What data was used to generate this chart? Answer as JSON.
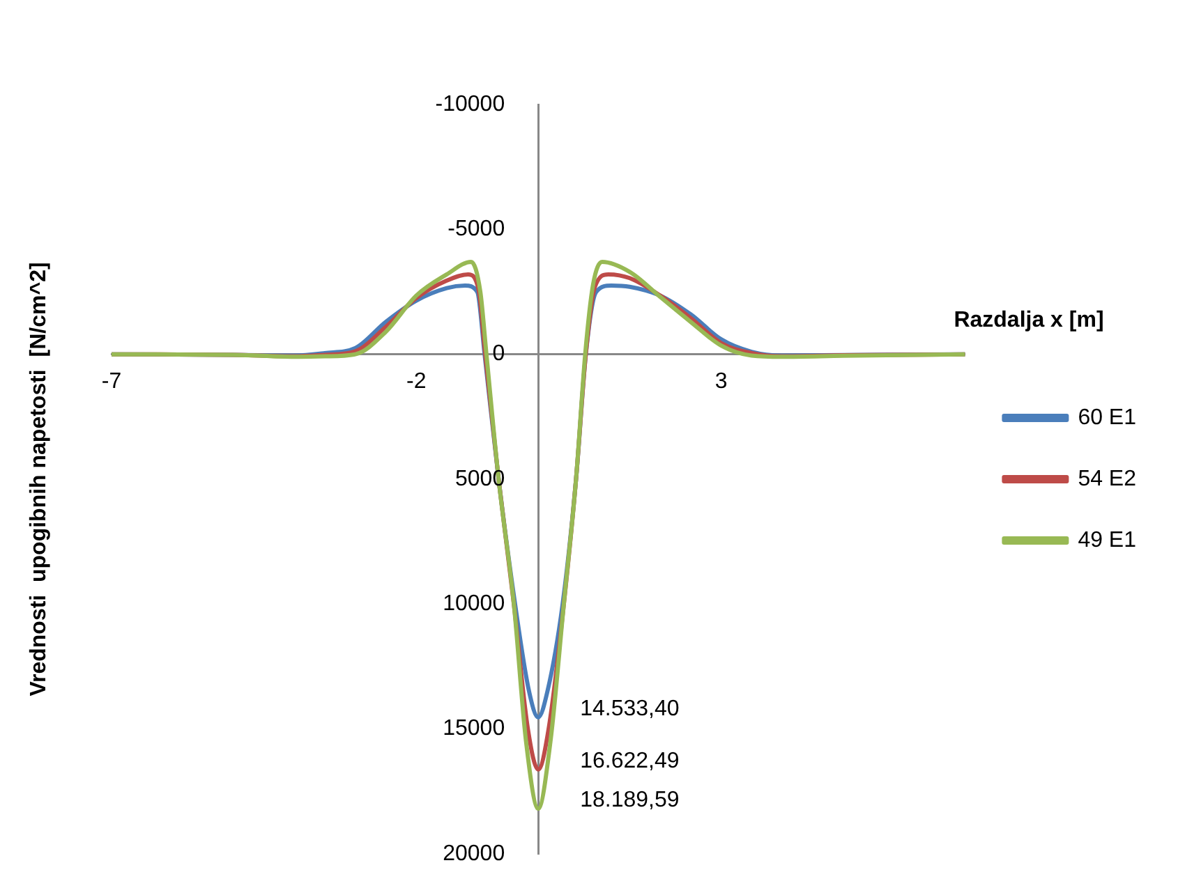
{
  "chart_data": {
    "type": "line",
    "xlabel": "Razdalja x [m]",
    "ylabel": "Vrednosti  upogibnih napetosti  [N/cm^2]",
    "xlim": [
      -7,
      7
    ],
    "xticks": [
      -7,
      -2,
      3
    ],
    "ylim": [
      20000,
      -10000
    ],
    "yticks": [
      -10000,
      -5000,
      0,
      5000,
      10000,
      15000,
      20000
    ],
    "grid": false,
    "legend": "right",
    "marker": "none",
    "line_style": "solid",
    "series": [
      {
        "name": "60 E1",
        "color": "#4a7ebb",
        "x": [
          -7,
          -5,
          -4,
          -3.5,
          -3,
          -2.5,
          -2,
          -1.5,
          -1.2,
          -1,
          -0.88,
          -0.65,
          -0.38,
          -0.15,
          0,
          0.15,
          0.4,
          0.62,
          0.78,
          0.95,
          1.2,
          1.5,
          2,
          2.5,
          3,
          3.5,
          4,
          5,
          7
        ],
        "values": [
          0,
          20,
          50,
          -50,
          -250,
          -1300,
          -2150,
          -2650,
          -2750,
          -2500,
          0,
          5000,
          10000,
          13500,
          14533.4,
          13500,
          10000,
          5000,
          0,
          -2500,
          -2750,
          -2700,
          -2350,
          -1600,
          -600,
          -100,
          50,
          30,
          0
        ],
        "value_labels": [
          null,
          null,
          null,
          null,
          null,
          null,
          null,
          null,
          null,
          null,
          null,
          null,
          null,
          null,
          "14.533,40",
          null,
          null,
          null,
          null,
          null,
          null,
          null,
          null,
          null,
          null,
          null,
          null,
          null,
          null
        ]
      },
      {
        "name": "54 E2",
        "color": "#be4b48",
        "x": [
          -7,
          -5,
          -4,
          -3.5,
          -3,
          -2.5,
          -2,
          -1.5,
          -1.15,
          -0.98,
          -0.87,
          -0.65,
          -0.4,
          -0.17,
          0,
          0.17,
          0.42,
          0.62,
          0.78,
          0.93,
          1.15,
          1.5,
          2,
          2.5,
          3,
          3.5,
          4,
          5,
          7
        ],
        "values": [
          0,
          20,
          80,
          20,
          -120,
          -1100,
          -2250,
          -2950,
          -3200,
          -2600,
          0,
          5000,
          10000,
          15000,
          16622.49,
          15000,
          10000,
          5000,
          0,
          -2700,
          -3200,
          -3050,
          -2350,
          -1450,
          -450,
          -50,
          80,
          40,
          0
        ],
        "value_labels": [
          null,
          null,
          null,
          null,
          null,
          null,
          null,
          null,
          null,
          null,
          null,
          null,
          null,
          null,
          "16.622,49",
          null,
          null,
          null,
          null,
          null,
          null,
          null,
          null,
          null,
          null,
          null,
          null,
          null,
          null
        ]
      },
      {
        "name": "49 E1",
        "color": "#98b954",
        "x": [
          -7,
          -5,
          -4,
          -3.5,
          -3,
          -2.5,
          -2,
          -1.5,
          -1.1,
          -0.95,
          -0.85,
          -0.65,
          -0.4,
          -0.2,
          0,
          0.2,
          0.42,
          0.62,
          0.77,
          0.9,
          1.05,
          1.5,
          2,
          2.5,
          3,
          3.5,
          4,
          5,
          7
        ],
        "values": [
          0,
          20,
          100,
          80,
          0,
          -900,
          -2350,
          -3200,
          -3700,
          -2500,
          0,
          5000,
          10000,
          15500,
          18189.59,
          15500,
          10000,
          5000,
          0,
          -2800,
          -3700,
          -3300,
          -2300,
          -1300,
          -350,
          50,
          100,
          60,
          0
        ],
        "value_labels": [
          null,
          null,
          null,
          null,
          null,
          null,
          null,
          null,
          null,
          null,
          null,
          null,
          null,
          null,
          "18.189,59",
          null,
          null,
          null,
          null,
          null,
          null,
          null,
          null,
          null,
          null,
          null,
          null,
          null,
          null
        ]
      }
    ]
  }
}
